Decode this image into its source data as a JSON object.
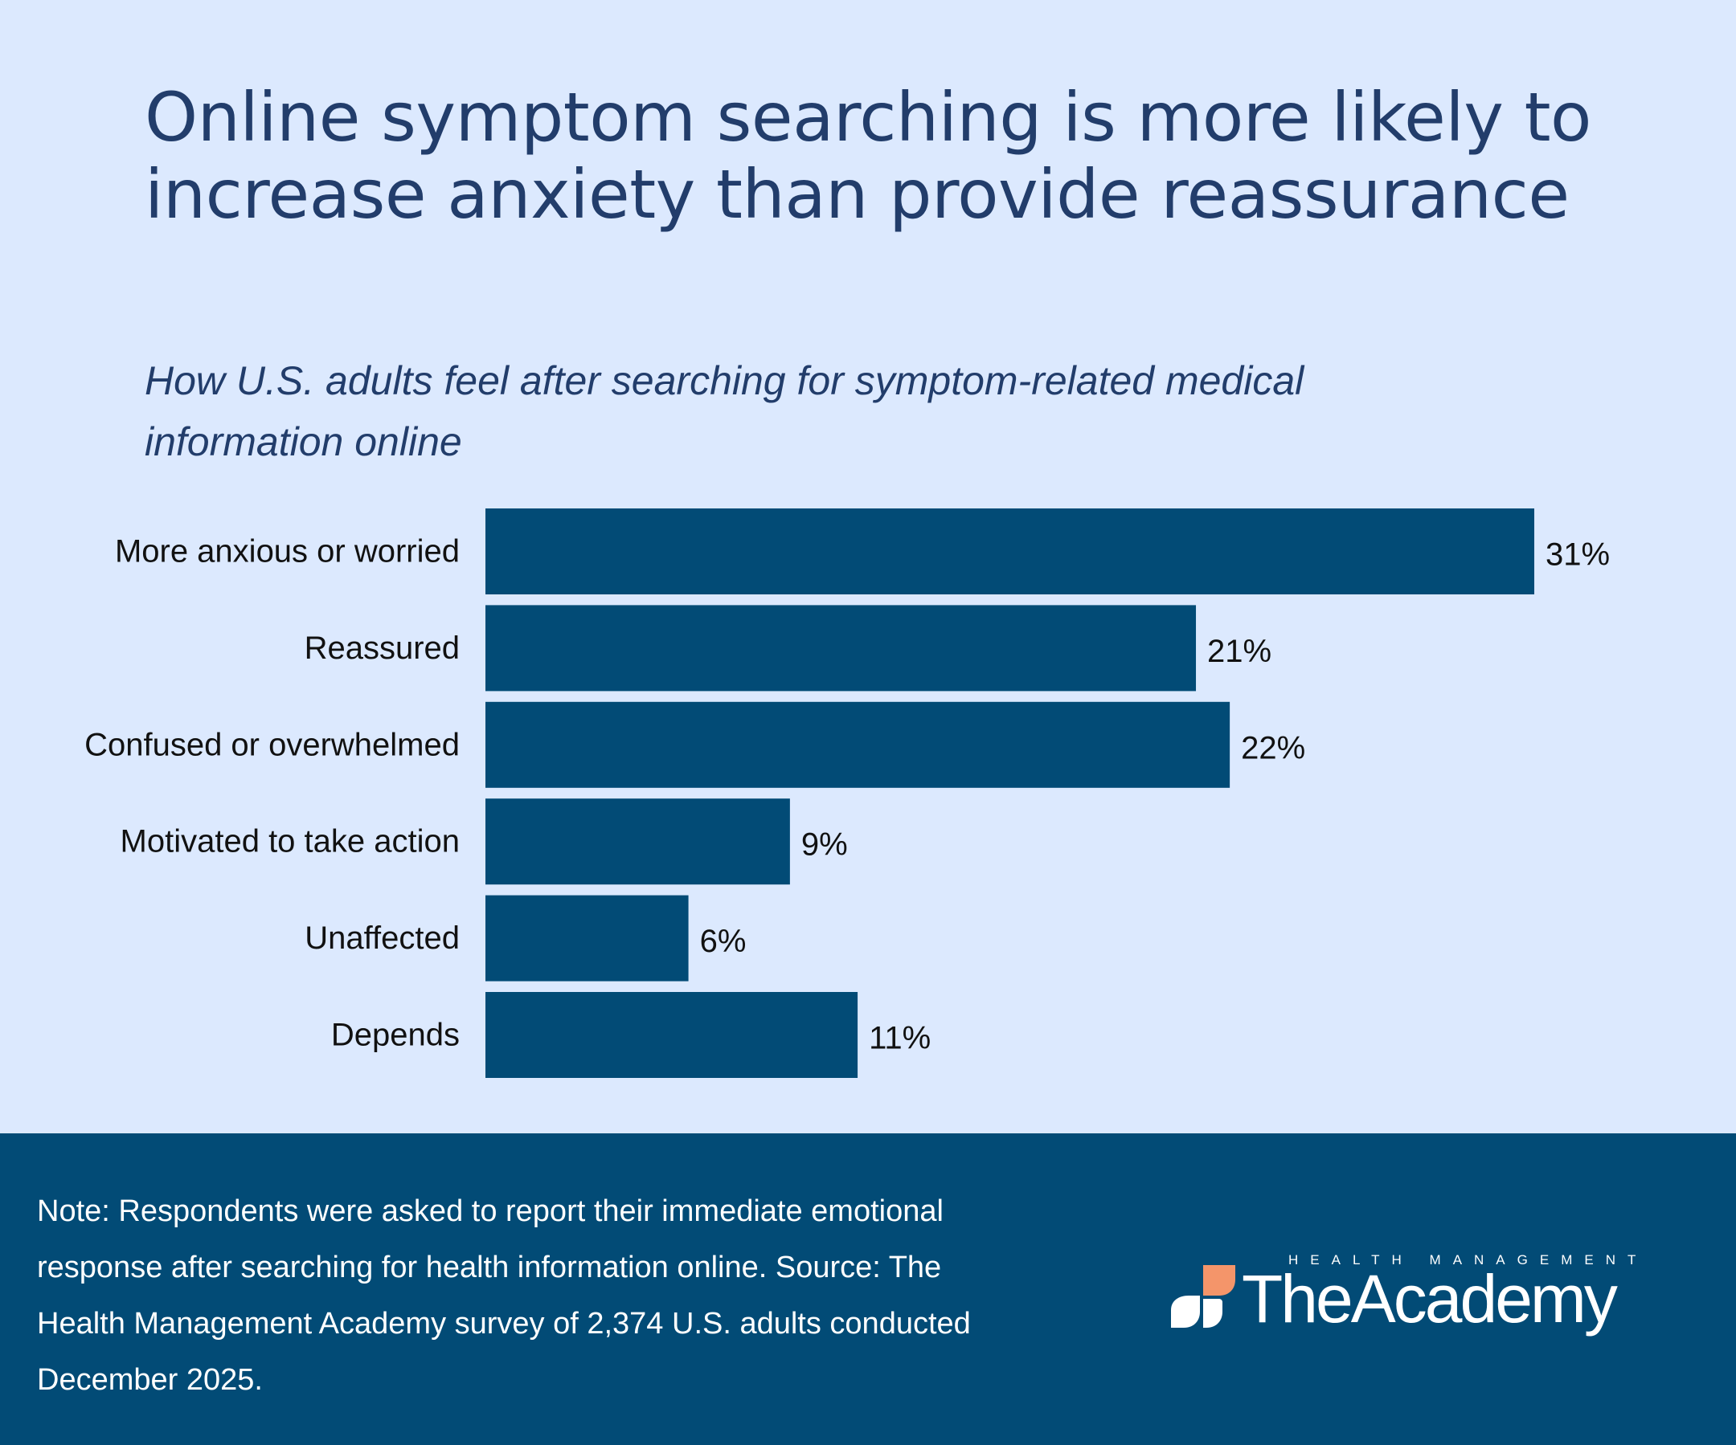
{
  "title": "Online symptom searching is more likely to increase anxiety than provide reassurance",
  "subtitle": "How U.S. adults feel after searching for symptom-related medical information online",
  "chart_data": {
    "type": "bar",
    "orientation": "horizontal",
    "title": "Online symptom searching is more likely to increase anxiety than provide reassurance",
    "subtitle": "How U.S. adults feel after searching for symptom-related medical information online",
    "categories": [
      "More anxious or worried",
      "Reassured",
      "Confused or overwhelmed",
      "Motivated to take action",
      "Unaffected",
      "Depends"
    ],
    "values": [
      31,
      21,
      22,
      9,
      6,
      11
    ],
    "value_labels": [
      "31%",
      "21%",
      "22%",
      "9%",
      "6%",
      "11%"
    ],
    "unit": "%",
    "xlabel": "",
    "ylabel": "",
    "xlim": [
      0,
      31
    ],
    "grid": false,
    "legend": "none",
    "bar_color": "#024b76"
  },
  "footer": {
    "note": "Note: Respondents were asked to report their immediate emotional response after searching for health information online. Source: The Health Management Academy survey of 2,374 U.S. adults conducted December 2025."
  },
  "logo": {
    "kicker": "HEALTH MANAGEMENT",
    "name": "TheAcademy",
    "accent_color": "#f4956a"
  },
  "colors": {
    "background": "#dce9fe",
    "title": "#223d6b",
    "bar": "#024b76",
    "footer_background": "#024b76",
    "label_text": "#111111"
  }
}
